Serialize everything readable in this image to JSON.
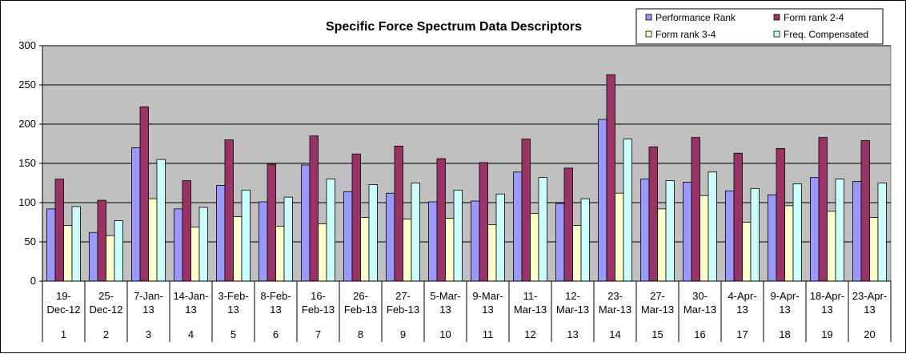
{
  "chart_data": {
    "type": "bar",
    "title": "Specific Force Spectrum Data Descriptors",
    "ylim": [
      0,
      300
    ],
    "yticks": [
      0,
      50,
      100,
      150,
      200,
      250,
      300
    ],
    "grid": true,
    "legend_position": "top-right",
    "plot_background": "#c0c0c0",
    "categories": [
      {
        "date": [
          "19-",
          "Dec-12"
        ],
        "index": "1"
      },
      {
        "date": [
          "25-",
          "Dec-12"
        ],
        "index": "2"
      },
      {
        "date": [
          "7-Jan-",
          "13"
        ],
        "index": "3"
      },
      {
        "date": [
          "14-Jan-",
          "13"
        ],
        "index": "4"
      },
      {
        "date": [
          "3-Feb-",
          "13"
        ],
        "index": "5"
      },
      {
        "date": [
          "8-Feb-",
          "13"
        ],
        "index": "6"
      },
      {
        "date": [
          "16-",
          "Feb-13"
        ],
        "index": "7"
      },
      {
        "date": [
          "26-",
          "Feb-13"
        ],
        "index": "8"
      },
      {
        "date": [
          "27-",
          "Feb-13"
        ],
        "index": "9"
      },
      {
        "date": [
          "5-Mar-",
          "13"
        ],
        "index": "10"
      },
      {
        "date": [
          "9-Mar-",
          "13"
        ],
        "index": "11"
      },
      {
        "date": [
          "11-",
          "Mar-13"
        ],
        "index": "12"
      },
      {
        "date": [
          "12-",
          "Mar-13"
        ],
        "index": "13"
      },
      {
        "date": [
          "23-",
          "Mar-13"
        ],
        "index": "14"
      },
      {
        "date": [
          "27-",
          "Mar-13"
        ],
        "index": "15"
      },
      {
        "date": [
          "30-",
          "Mar-13"
        ],
        "index": "16"
      },
      {
        "date": [
          "4-Apr-",
          "13"
        ],
        "index": "17"
      },
      {
        "date": [
          "9-Apr-",
          "13"
        ],
        "index": "18"
      },
      {
        "date": [
          "18-Apr-",
          "13"
        ],
        "index": "19"
      },
      {
        "date": [
          "23-Apr-",
          "13"
        ],
        "index": "20"
      }
    ],
    "series": [
      {
        "name": "Performance Rank",
        "color": "#9999ff",
        "values": [
          92,
          62,
          170,
          92,
          122,
          101,
          148,
          114,
          112,
          101,
          102,
          139,
          99,
          206,
          130,
          126,
          115,
          110,
          132,
          127
        ]
      },
      {
        "name": "Form rank 2-4",
        "color": "#993366",
        "values": [
          130,
          103,
          222,
          128,
          180,
          149,
          185,
          162,
          172,
          156,
          151,
          181,
          144,
          263,
          171,
          183,
          163,
          169,
          183,
          179
        ]
      },
      {
        "name": "Form rank 3-4",
        "color": "#ffffcc",
        "values": [
          71,
          58,
          105,
          69,
          82,
          70,
          73,
          81,
          79,
          80,
          72,
          86,
          71,
          112,
          92,
          109,
          75,
          96,
          89,
          81
        ]
      },
      {
        "name": "Freq. Compensated",
        "color": "#ccffff",
        "values": [
          95,
          77,
          155,
          94,
          116,
          107,
          130,
          123,
          125,
          116,
          111,
          132,
          105,
          181,
          128,
          139,
          118,
          124,
          130,
          125
        ]
      }
    ]
  }
}
